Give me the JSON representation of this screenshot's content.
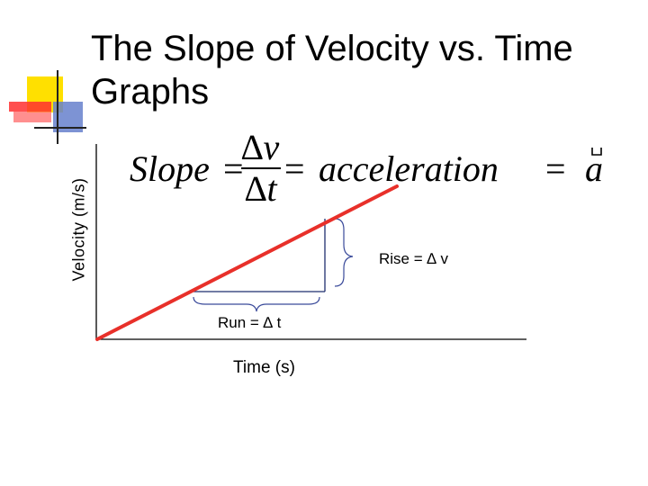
{
  "slide": {
    "title_line1": "The Slope of Velocity vs. Time",
    "title_line2": "Graphs"
  },
  "diagram": {
    "y_axis_label": "Velocity (m/s)",
    "x_axis_label": "Time (s)",
    "rise_label": "Rise = ∆ v",
    "run_label": "Run = ∆ t",
    "equation": {
      "lhs": "Slope",
      "numerator": "∆v",
      "denominator": "∆t",
      "word": "acceleration",
      "rhs": "a",
      "eq": "="
    }
  },
  "colors": {
    "line": "#e8302a",
    "triangle": "#1f2e6e",
    "axis": "#000000",
    "brace": "#3a4a9a"
  }
}
